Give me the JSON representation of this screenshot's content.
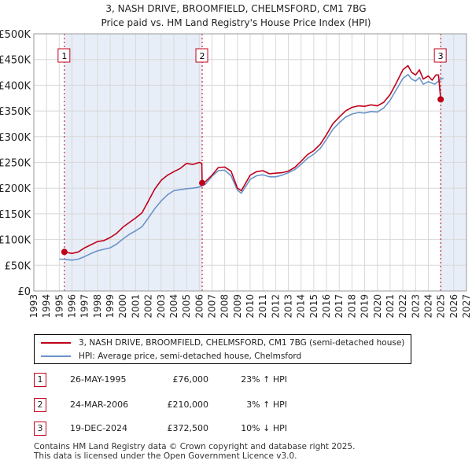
{
  "title": "3, NASH DRIVE, BROOMFIELD, CHELMSFORD, CM1 7BG",
  "subtitle": "Price paid vs. HM Land Registry's House Price Index (HPI)",
  "colors": {
    "property": "#c0001a",
    "hpi": "#6a93c8",
    "shade": "#e8eef8",
    "grid": "#d8d8d8"
  },
  "chart_data": {
    "type": "line",
    "x_range": [
      1993,
      2027
    ],
    "y_range": [
      0,
      500000
    ],
    "y_ticks": [
      {
        "value": 0,
        "label": "£0"
      },
      {
        "value": 50000,
        "label": "£50K"
      },
      {
        "value": 100000,
        "label": "£100K"
      },
      {
        "value": 150000,
        "label": "£150K"
      },
      {
        "value": 200000,
        "label": "£200K"
      },
      {
        "value": 250000,
        "label": "£250K"
      },
      {
        "value": 300000,
        "label": "£300K"
      },
      {
        "value": 350000,
        "label": "£350K"
      },
      {
        "value": 400000,
        "label": "£400K"
      },
      {
        "value": 450000,
        "label": "£450K"
      },
      {
        "value": 500000,
        "label": "£500K"
      }
    ],
    "x_ticks": [
      "1993",
      "1994",
      "1995",
      "1996",
      "1997",
      "1998",
      "1999",
      "2000",
      "2001",
      "2002",
      "2003",
      "2004",
      "2005",
      "2006",
      "2007",
      "2008",
      "2009",
      "2010",
      "2011",
      "2012",
      "2013",
      "2014",
      "2015",
      "2016",
      "2017",
      "2018",
      "2019",
      "2020",
      "2021",
      "2022",
      "2023",
      "2024",
      "2025",
      "2026",
      "2027"
    ],
    "shaded_periods": [
      [
        1995.4,
        2006.23
      ],
      [
        2024.97,
        2027
      ]
    ],
    "series": [
      {
        "name": "3, NASH DRIVE, BROOMFIELD, CHELMSFORD, CM1 7BG (semi-detached house)",
        "points": [
          [
            1995.4,
            76000
          ],
          [
            1995.7,
            74500
          ],
          [
            1996,
            73000
          ],
          [
            1996.5,
            76000
          ],
          [
            1997,
            84000
          ],
          [
            1997.5,
            90000
          ],
          [
            1998,
            96000
          ],
          [
            1998.5,
            98000
          ],
          [
            1999,
            104000
          ],
          [
            1999.5,
            112000
          ],
          [
            2000,
            124000
          ],
          [
            2000.5,
            133000
          ],
          [
            2001,
            142000
          ],
          [
            2001.5,
            152000
          ],
          [
            2002,
            175000
          ],
          [
            2002.5,
            198000
          ],
          [
            2003,
            215000
          ],
          [
            2003.5,
            225000
          ],
          [
            2004,
            232000
          ],
          [
            2004.5,
            238000
          ],
          [
            2005,
            248000
          ],
          [
            2005.5,
            246000
          ],
          [
            2006,
            250000
          ],
          [
            2006.2,
            248000
          ],
          [
            2006.23,
            210000
          ],
          [
            2006.5,
            213000
          ],
          [
            2007,
            225000
          ],
          [
            2007.5,
            240000
          ],
          [
            2008,
            241000
          ],
          [
            2008.5,
            233000
          ],
          [
            2009,
            200000
          ],
          [
            2009.3,
            195000
          ],
          [
            2009.7,
            212000
          ],
          [
            2010,
            225000
          ],
          [
            2010.5,
            232000
          ],
          [
            2011,
            234000
          ],
          [
            2011.5,
            228000
          ],
          [
            2012,
            229000
          ],
          [
            2012.5,
            230000
          ],
          [
            2013,
            233000
          ],
          [
            2013.5,
            240000
          ],
          [
            2014,
            252000
          ],
          [
            2014.5,
            265000
          ],
          [
            2015,
            273000
          ],
          [
            2015.5,
            285000
          ],
          [
            2016,
            304000
          ],
          [
            2016.5,
            325000
          ],
          [
            2017,
            338000
          ],
          [
            2017.5,
            350000
          ],
          [
            2018,
            357000
          ],
          [
            2018.5,
            360000
          ],
          [
            2019,
            359000
          ],
          [
            2019.5,
            362000
          ],
          [
            2020,
            360000
          ],
          [
            2020.5,
            367000
          ],
          [
            2021,
            382000
          ],
          [
            2021.5,
            405000
          ],
          [
            2022,
            430000
          ],
          [
            2022.4,
            438000
          ],
          [
            2022.7,
            425000
          ],
          [
            2023,
            420000
          ],
          [
            2023.3,
            430000
          ],
          [
            2023.6,
            412000
          ],
          [
            2024,
            418000
          ],
          [
            2024.3,
            410000
          ],
          [
            2024.6,
            420000
          ],
          [
            2024.8,
            420000
          ],
          [
            2024.97,
            372500
          ]
        ]
      },
      {
        "name": "HPI: Average price, semi-detached house, Chelmsford",
        "points": [
          [
            1995,
            62000
          ],
          [
            1995.5,
            61500
          ],
          [
            1996,
            60000
          ],
          [
            1996.5,
            62000
          ],
          [
            1997,
            67000
          ],
          [
            1997.5,
            73000
          ],
          [
            1998,
            78000
          ],
          [
            1998.5,
            81000
          ],
          [
            1999,
            84000
          ],
          [
            1999.5,
            91000
          ],
          [
            2000,
            101000
          ],
          [
            2000.5,
            110000
          ],
          [
            2001,
            117000
          ],
          [
            2001.5,
            125000
          ],
          [
            2002,
            142000
          ],
          [
            2002.5,
            160000
          ],
          [
            2003,
            175000
          ],
          [
            2003.5,
            187000
          ],
          [
            2004,
            195000
          ],
          [
            2004.5,
            197000
          ],
          [
            2005,
            199000
          ],
          [
            2005.5,
            200000
          ],
          [
            2006,
            202000
          ],
          [
            2006.5,
            208000
          ],
          [
            2007,
            223000
          ],
          [
            2007.5,
            234000
          ],
          [
            2008,
            235000
          ],
          [
            2008.5,
            224000
          ],
          [
            2009,
            196000
          ],
          [
            2009.3,
            190000
          ],
          [
            2009.7,
            205000
          ],
          [
            2010,
            217000
          ],
          [
            2010.5,
            224000
          ],
          [
            2011,
            226000
          ],
          [
            2011.5,
            222000
          ],
          [
            2012,
            222000
          ],
          [
            2012.5,
            225000
          ],
          [
            2013,
            230000
          ],
          [
            2013.5,
            236000
          ],
          [
            2014,
            246000
          ],
          [
            2014.5,
            258000
          ],
          [
            2015,
            266000
          ],
          [
            2015.5,
            277000
          ],
          [
            2016,
            295000
          ],
          [
            2016.5,
            314000
          ],
          [
            2017,
            327000
          ],
          [
            2017.5,
            338000
          ],
          [
            2018,
            344000
          ],
          [
            2018.5,
            347000
          ],
          [
            2019,
            346000
          ],
          [
            2019.5,
            349000
          ],
          [
            2020,
            348000
          ],
          [
            2020.5,
            356000
          ],
          [
            2021,
            371000
          ],
          [
            2021.5,
            392000
          ],
          [
            2022,
            413000
          ],
          [
            2022.4,
            421000
          ],
          [
            2022.7,
            412000
          ],
          [
            2023,
            408000
          ],
          [
            2023.3,
            415000
          ],
          [
            2023.6,
            402000
          ],
          [
            2024,
            407000
          ],
          [
            2024.5,
            402000
          ],
          [
            2025,
            412000
          ],
          [
            2025.2,
            414000
          ]
        ]
      }
    ],
    "sales": [
      {
        "id": "1",
        "year": 1995.4,
        "price": 76000
      },
      {
        "id": "2",
        "year": 2006.23,
        "price": 210000
      },
      {
        "id": "3",
        "year": 2024.97,
        "price": 372500
      }
    ]
  },
  "legend": {
    "property": "3, NASH DRIVE, BROOMFIELD, CHELMSFORD, CM1 7BG (semi-detached house)",
    "hpi": "HPI: Average price, semi-detached house, Chelmsford"
  },
  "transactions": [
    {
      "id": "1",
      "date": "26-MAY-1995",
      "price": "£76,000",
      "hpi": "23% ↑ HPI"
    },
    {
      "id": "2",
      "date": "24-MAR-2006",
      "price": "£210,000",
      "hpi": "3% ↑ HPI"
    },
    {
      "id": "3",
      "date": "19-DEC-2024",
      "price": "£372,500",
      "hpi": "10% ↓ HPI"
    }
  ],
  "footer": {
    "line1": "Contains HM Land Registry data © Crown copyright and database right 2025.",
    "line2": "This data is licensed under the Open Government Licence v3.0."
  }
}
